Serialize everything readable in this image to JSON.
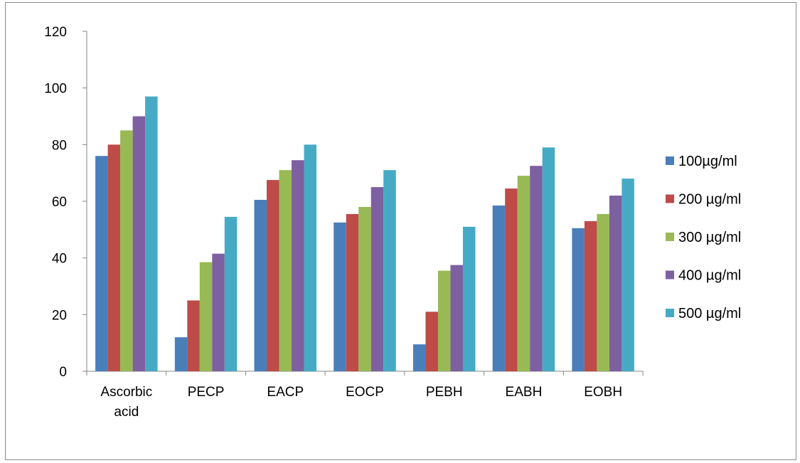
{
  "chart_data": {
    "type": "bar",
    "categories": [
      [
        "Ascorbic",
        "acid"
      ],
      [
        "PECP"
      ],
      [
        "EACP"
      ],
      [
        "EOCP"
      ],
      [
        "PEBH"
      ],
      [
        "EABH"
      ],
      [
        "EOBH"
      ]
    ],
    "series": [
      {
        "name": "100µg/ml",
        "color": "#4a7ebb",
        "values": [
          76,
          12,
          60.5,
          52.5,
          9.5,
          58.5,
          50.5
        ]
      },
      {
        "name": "200 µg/ml",
        "color": "#be4b48",
        "values": [
          80,
          25,
          67.5,
          55.5,
          21,
          64.5,
          53
        ]
      },
      {
        "name": "300 µg/ml",
        "color": "#98b954",
        "values": [
          85,
          38.5,
          71,
          58,
          35.5,
          69,
          55.5
        ]
      },
      {
        "name": "400 µg/ml",
        "color": "#7d60a0",
        "values": [
          90,
          41.5,
          74.5,
          65,
          37.5,
          72.5,
          62
        ]
      },
      {
        "name": "500 µg/ml",
        "color": "#46aac5",
        "values": [
          97,
          54.5,
          80,
          71,
          51,
          79,
          68
        ]
      }
    ],
    "yticks": [
      "0",
      "20",
      "40",
      "60",
      "80",
      "100",
      "120"
    ],
    "ylim": [
      0,
      120
    ],
    "grid": false,
    "legend_position": "right"
  }
}
